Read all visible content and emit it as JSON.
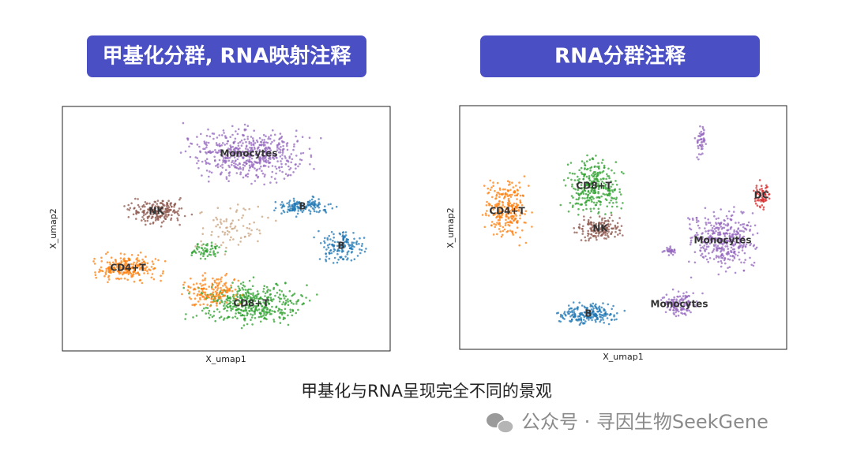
{
  "panels": [
    {
      "title": "甲基化分群, RNA映射注释",
      "x_label": "X_umap1",
      "y_label": "X_umap2",
      "clusters": [
        "Monocytes",
        "NK",
        "B",
        "B",
        "CD4+T",
        "CD8+T"
      ]
    },
    {
      "title": "RNA分群注释",
      "x_label": "X_umap1",
      "y_label": "X_umap2",
      "clusters": [
        "CD4+T",
        "CD8+T",
        "NK",
        "DC",
        "Monocytes",
        "Monocytes",
        "B"
      ]
    }
  ],
  "caption": "甲基化与RNA呈现完全不同的景观",
  "watermark": "公众号 · 寻因生物SeekGene"
}
